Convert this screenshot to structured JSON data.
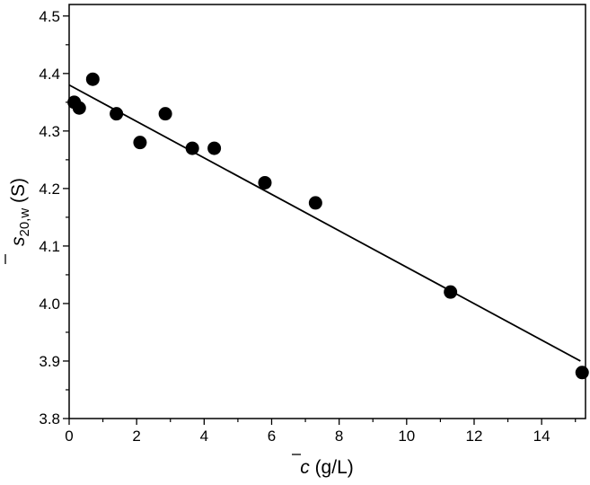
{
  "chart_data": {
    "type": "scatter",
    "xlabel": "c̄ (g/L)",
    "ylabel": "s̄20,w (S)",
    "ylabel_parts": {
      "symbol": "s",
      "subscript": "20,w",
      "unit": " (S)"
    },
    "xlabel_parts": {
      "symbol": "c",
      "unit": " (g/L)"
    },
    "xlim": [
      0,
      15.3
    ],
    "ylim": [
      3.8,
      4.52
    ],
    "x_ticks": [
      0,
      2,
      4,
      6,
      8,
      10,
      12,
      14
    ],
    "x_tick_labels": [
      "0",
      "2",
      "4",
      "6",
      "8",
      "10",
      "12",
      "14"
    ],
    "y_ticks": [
      3.8,
      3.9,
      4.0,
      4.1,
      4.2,
      4.3,
      4.4,
      4.5
    ],
    "y_tick_labels": [
      "3.8",
      "3.9",
      "4.0",
      "4.1",
      "4.2",
      "4.3",
      "4.4",
      "4.5"
    ],
    "grid": false,
    "series": [
      {
        "type": "scatter",
        "x": [
          0.15,
          0.3,
          0.7,
          1.4,
          2.1,
          2.85,
          3.65,
          4.3,
          5.8,
          7.3,
          11.3,
          15.2
        ],
        "y": [
          4.35,
          4.34,
          4.39,
          4.33,
          4.28,
          4.33,
          4.27,
          4.27,
          4.21,
          4.175,
          4.02,
          3.88
        ]
      },
      {
        "type": "line",
        "x": [
          0,
          15.15
        ],
        "y": [
          4.38,
          3.9
        ]
      }
    ]
  }
}
